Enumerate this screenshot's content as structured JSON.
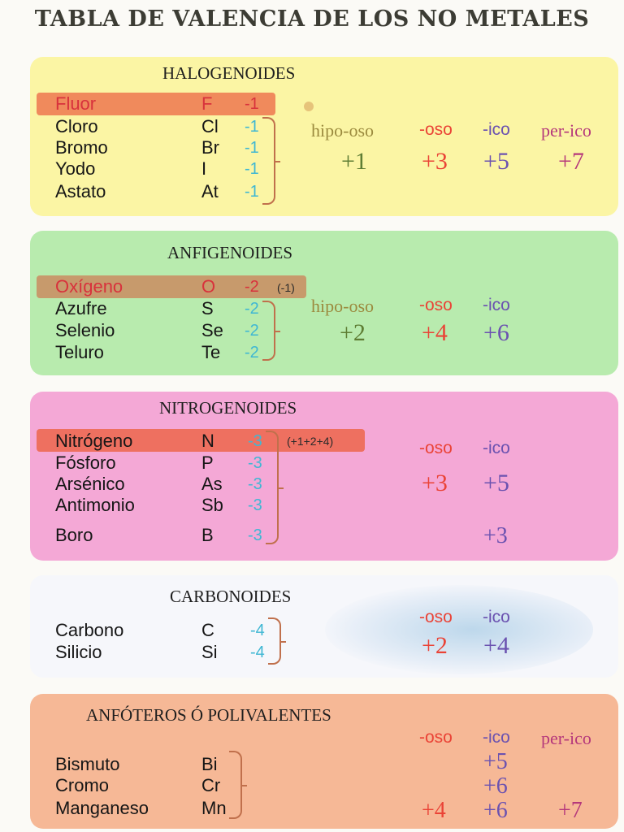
{
  "title": "TABLA DE VALENCIA DE LOS NO METALES",
  "groups": [
    {
      "name": "HALOGENOIDES",
      "elements": [
        {
          "name": "Fluor",
          "symbol": "F",
          "valence": "-1"
        },
        {
          "name": "Cloro",
          "symbol": "Cl",
          "valence": "-1"
        },
        {
          "name": "Bromo",
          "symbol": "Br",
          "valence": "-1"
        },
        {
          "name": "Yodo",
          "symbol": "I",
          "valence": "-1"
        },
        {
          "name": "Astato",
          "symbol": "At",
          "valence": "-1"
        }
      ],
      "headers": [
        "hipo-oso",
        "-oso",
        "-ico",
        "per-ico"
      ],
      "values": [
        "+1",
        "+3",
        "+5",
        "+7"
      ]
    },
    {
      "name": "ANFIGENOIDES",
      "elements": [
        {
          "name": "Oxígeno",
          "symbol": "O",
          "valence": "-2",
          "note": "(-1)"
        },
        {
          "name": "Azufre",
          "symbol": "S",
          "valence": "-2"
        },
        {
          "name": "Selenio",
          "symbol": "Se",
          "valence": "-2"
        },
        {
          "name": "Teluro",
          "symbol": "Te",
          "valence": "-2"
        }
      ],
      "headers": [
        "hipo-oso",
        "-oso",
        "-ico"
      ],
      "values": [
        "+2",
        "+4",
        "+6"
      ]
    },
    {
      "name": "NITROGENOIDES",
      "elements": [
        {
          "name": "Nitrógeno",
          "symbol": "N",
          "valence": "-3",
          "note": "(+1+2+4)"
        },
        {
          "name": "Fósforo",
          "symbol": "P",
          "valence": "-3"
        },
        {
          "name": "Arsénico",
          "symbol": "As",
          "valence": "-3"
        },
        {
          "name": "Antimonio",
          "symbol": "Sb",
          "valence": "-3"
        },
        {
          "name": "Boro",
          "symbol": "B",
          "valence": "-3"
        }
      ],
      "headers": [
        "-oso",
        "-ico"
      ],
      "values": [
        "+3",
        "+5"
      ],
      "extra_value": "+3"
    },
    {
      "name": "CARBONOIDES",
      "elements": [
        {
          "name": "Carbono",
          "symbol": "C",
          "valence": "-4"
        },
        {
          "name": "Silicio",
          "symbol": "Si",
          "valence": "-4"
        }
      ],
      "headers": [
        "-oso",
        "-ico"
      ],
      "values": [
        "+2",
        "+4"
      ]
    },
    {
      "name": "ANFÓTEROS Ó POLIVALENTES",
      "elements": [
        {
          "name": "Bismuto",
          "symbol": "Bi"
        },
        {
          "name": "Cromo",
          "symbol": "Cr"
        },
        {
          "name": "Manganeso",
          "symbol": "Mn"
        }
      ],
      "headers": [
        "-oso",
        "-ico",
        "per-ico"
      ],
      "ico_values": [
        "+5",
        "+6",
        "+6"
      ],
      "oso_value": "+4",
      "per_value": "+7"
    }
  ]
}
